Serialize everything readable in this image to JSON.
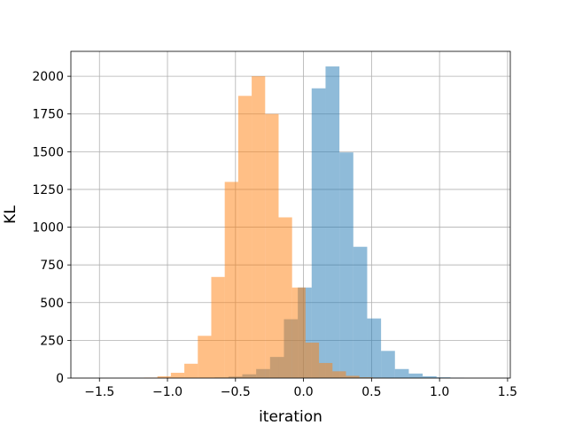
{
  "chart_data": {
    "type": "bar",
    "title": "",
    "xlabel": "iteration",
    "ylabel": "KL",
    "xlim": [
      -1.71,
      1.52
    ],
    "ylim": [
      0,
      2165
    ],
    "grid": true,
    "xticks": [
      -1.5,
      -1.0,
      -0.5,
      0.0,
      0.5,
      1.0,
      1.5
    ],
    "xtick_labels": [
      "−1.5",
      "−1.0",
      "−0.5",
      "0.0",
      "0.5",
      "1.0",
      "1.5"
    ],
    "yticks": [
      0,
      250,
      500,
      750,
      1000,
      1250,
      1500,
      1750,
      2000
    ],
    "ytick_labels": [
      "0",
      "250",
      "500",
      "750",
      "1000",
      "1250",
      "1500",
      "1750",
      "2000"
    ],
    "series": [
      {
        "color": "#1f77b4",
        "bin_width": 0.102,
        "x": [
          -1.47,
          -1.368,
          -1.266,
          -1.164,
          -1.062,
          -0.96,
          -0.858,
          -0.756,
          -0.654,
          -0.552,
          -0.45,
          -0.348,
          -0.246,
          -0.144,
          -0.042,
          0.06,
          0.162,
          0.264,
          0.366,
          0.468,
          0.57,
          0.672,
          0.774,
          0.876,
          0.978,
          1.08,
          1.182,
          1.284
        ],
        "values": [
          0,
          0,
          0,
          0,
          0,
          0,
          0,
          2,
          4,
          10,
          25,
          60,
          140,
          390,
          600,
          1920,
          2065,
          1495,
          870,
          395,
          180,
          60,
          30,
          12,
          5,
          2,
          0,
          0
        ]
      },
      {
        "color": "#ff7f0e",
        "bin_width": 0.099,
        "x": [
          -1.47,
          -1.371,
          -1.272,
          -1.173,
          -1.074,
          -0.975,
          -0.876,
          -0.777,
          -0.678,
          -0.579,
          -0.48,
          -0.381,
          -0.282,
          -0.183,
          -0.084,
          0.015,
          0.114,
          0.213,
          0.312,
          0.411,
          0.51,
          0.609
        ],
        "values": [
          0,
          0,
          0,
          3,
          12,
          35,
          95,
          280,
          670,
          1300,
          1870,
          2000,
          1750,
          1065,
          600,
          235,
          100,
          45,
          15,
          5,
          2,
          0
        ]
      }
    ]
  }
}
